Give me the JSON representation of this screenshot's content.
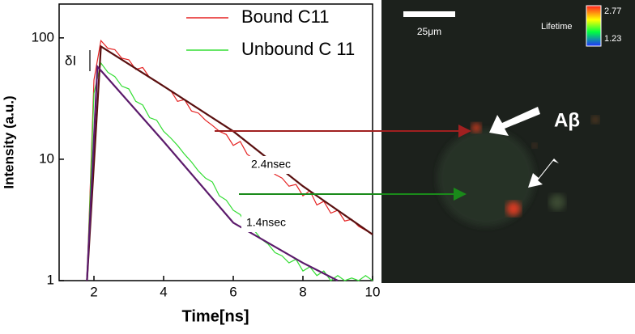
{
  "chart_data": {
    "type": "line",
    "xlabel": "Time[ns]",
    "ylabel": "Intensity (a.u.)",
    "x": [
      1.8,
      2.0,
      2.2,
      2.4,
      2.6,
      2.8,
      3.0,
      3.2,
      3.4,
      3.6,
      3.8,
      4.0,
      4.2,
      4.4,
      4.6,
      4.8,
      5.0,
      5.2,
      5.4,
      5.6,
      5.8,
      6.0,
      6.2,
      6.4,
      6.6,
      6.8,
      7.0,
      7.2,
      7.4,
      7.6,
      7.8,
      8.0,
      8.2,
      8.4,
      8.6,
      8.8,
      9.0,
      9.2,
      9.4,
      9.6,
      9.8,
      10.0
    ],
    "series": [
      {
        "name": "Bound C11",
        "color": "#e52222",
        "values": [
          1,
          45,
          95,
          82,
          80,
          68,
          66,
          55,
          57,
          47,
          44,
          40,
          37,
          30,
          31,
          25,
          24,
          21,
          19,
          17,
          16,
          13,
          14,
          11,
          10,
          9,
          8.5,
          7.5,
          7,
          6,
          6.2,
          5,
          5.5,
          4.2,
          4.5,
          3.6,
          3.8,
          3.1,
          3.2,
          2.8,
          2.6,
          2.4
        ]
      },
      {
        "name": "Unbound C 11",
        "color": "#33dd33",
        "values": [
          1,
          35,
          62,
          52,
          48,
          40,
          38,
          30,
          28,
          22,
          21,
          17,
          15,
          13,
          11,
          9.5,
          8,
          7,
          6.5,
          5,
          4.6,
          3.8,
          3.5,
          2.8,
          2.6,
          2.2,
          2,
          1.7,
          1.6,
          1.4,
          1.5,
          1.2,
          1.3,
          1.1,
          1.2,
          1,
          1.1,
          1,
          1.05,
          1,
          1.1,
          1
        ]
      },
      {
        "color": "#5a1010",
        "x": [
          1.8,
          2.2,
          4,
          6,
          8,
          10
        ],
        "values": [
          1,
          85,
          40,
          17,
          6,
          2.4
        ]
      },
      {
        "color": "#5b1a6b",
        "x": [
          1.8,
          2.1,
          4,
          6,
          8,
          9
        ],
        "values": [
          1,
          58,
          14,
          3,
          1.4,
          1
        ]
      }
    ],
    "xlim": [
      1,
      10
    ],
    "xticks": [
      2,
      4,
      6,
      8,
      10
    ],
    "ylim": [
      1,
      190
    ],
    "yticks": [
      1,
      10,
      100
    ],
    "log_y": true,
    "annotations": {
      "delta": "δI",
      "bound_lifetime": "2.4nsec",
      "unbound_lifetime": "1.4nsec",
      "abeta": "Aβ",
      "scale_bar": "25μm",
      "colorbar_title": "Lifetime",
      "colorbar_max": "2.77",
      "colorbar_min": "1.23"
    }
  }
}
